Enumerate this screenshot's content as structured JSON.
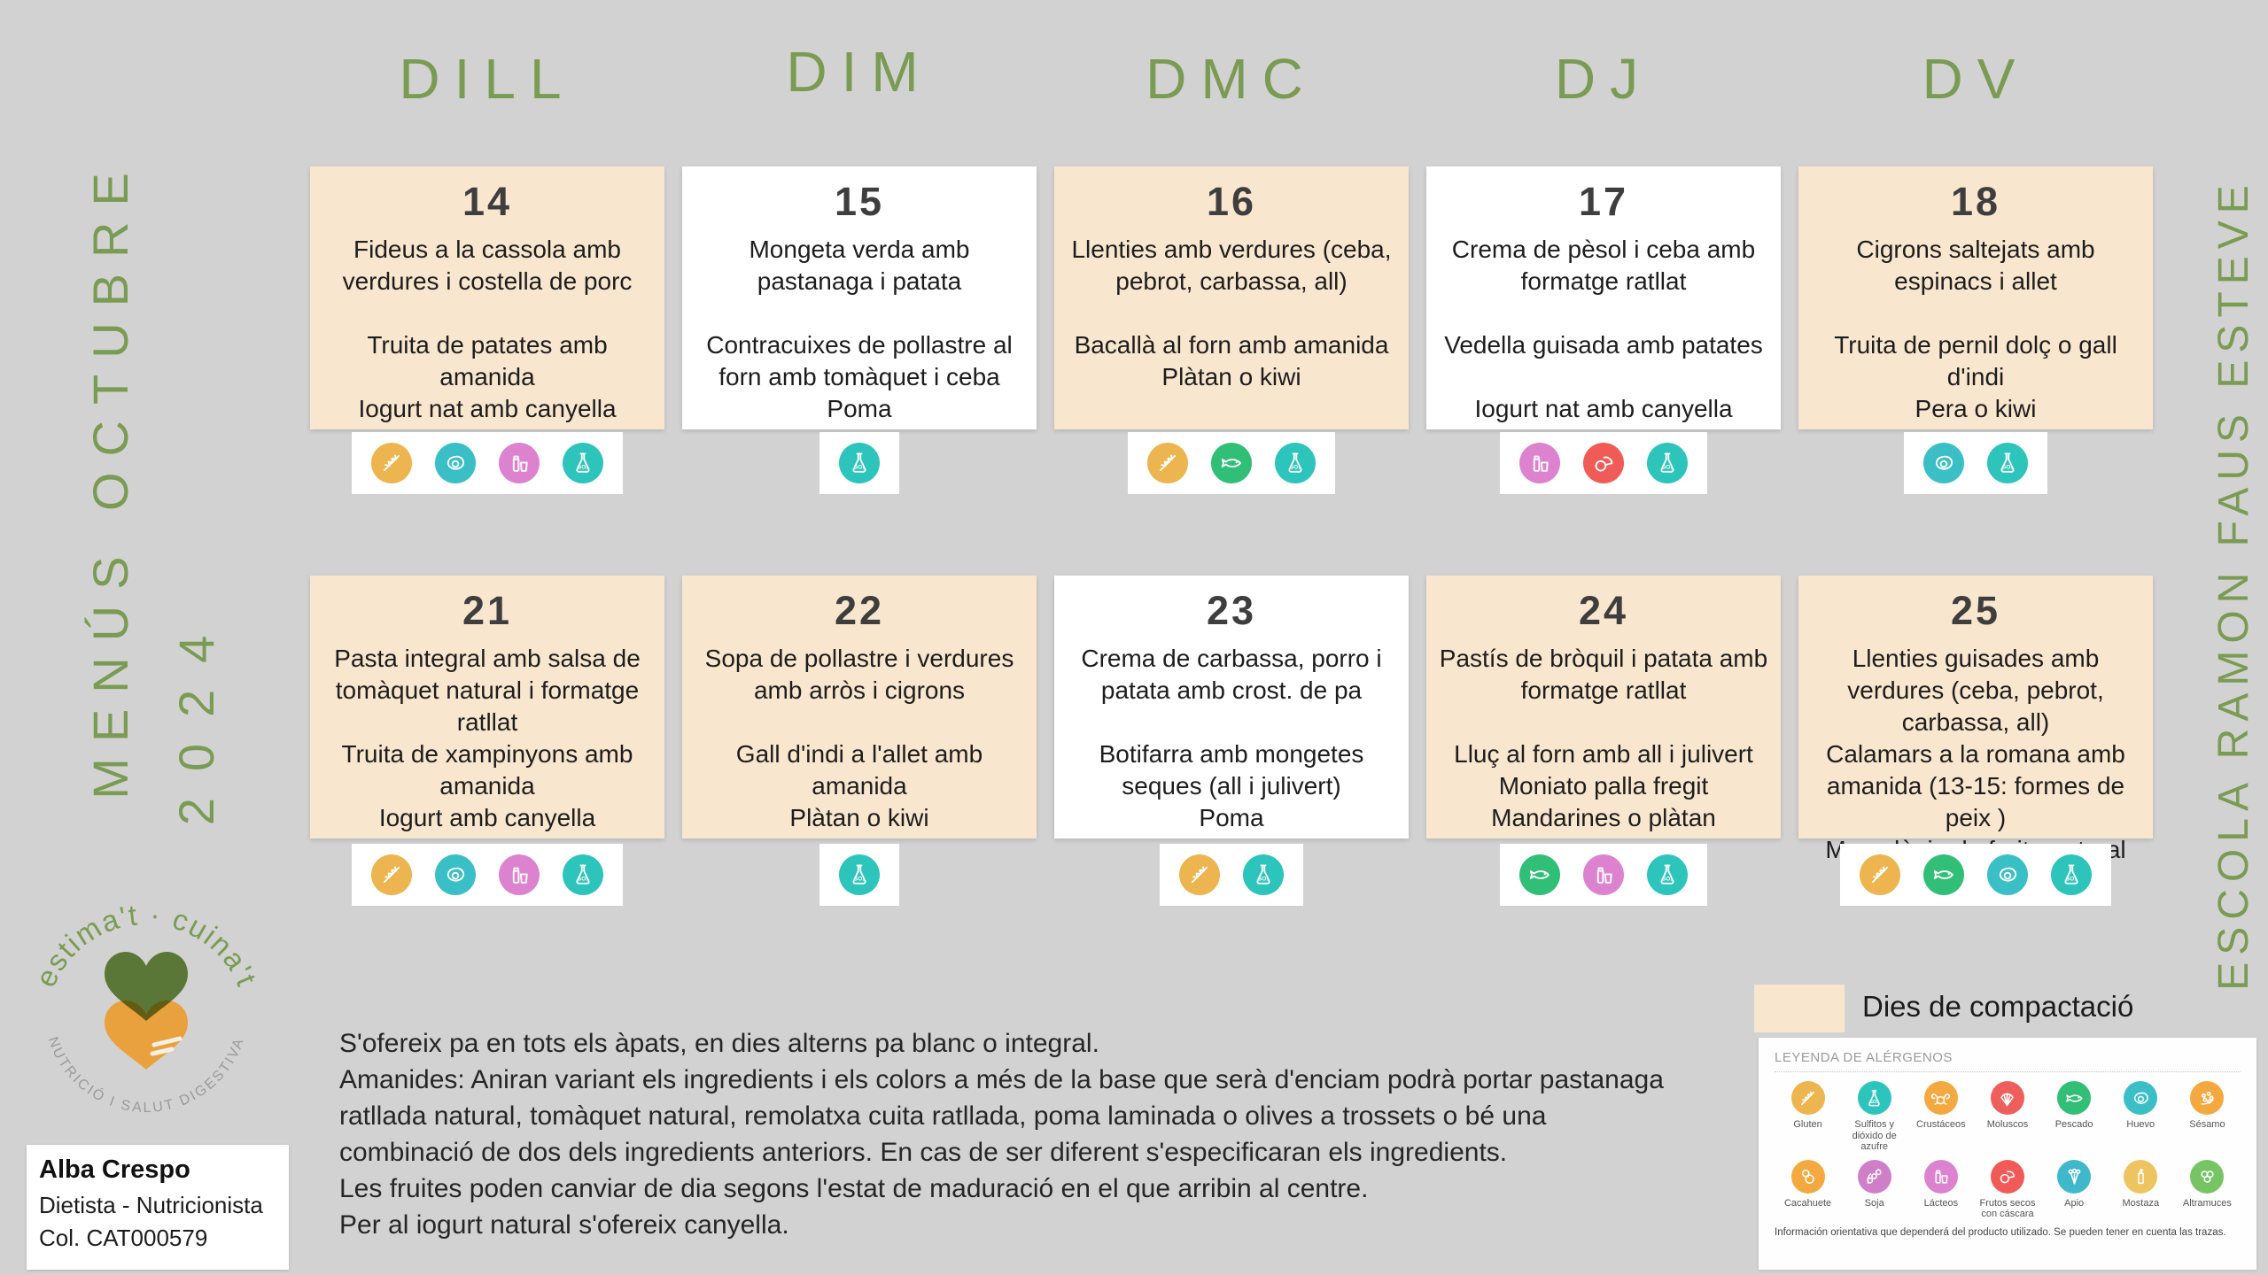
{
  "page": {
    "background": "#d2d2d2",
    "accent_green": "#7a9b53",
    "card_peach": "#f9e6ce",
    "card_white": "#ffffff"
  },
  "titles": {
    "left_line1": "MENÚS OCTUBRE",
    "left_line2": "2024",
    "right": "ESCOLA RAMON FAUS ESTEVE"
  },
  "weekdays": [
    "DILL",
    "DIM",
    "DMC",
    "DJ",
    "DV"
  ],
  "cards": [
    {
      "day": "14",
      "compaction": true,
      "lines": [
        "Fideus a la cassola amb verdures i costella de porc",
        "",
        "Truita de patates amb amanida",
        "Iogurt nat amb canyella",
        ""
      ],
      "allergens": [
        "gluten",
        "huevo",
        "lacteos",
        "sulfitos"
      ]
    },
    {
      "day": "15",
      "compaction": false,
      "lines": [
        "Mongeta verda amb pastanaga i patata",
        "",
        "Contracuixes de pollastre al forn amb tomàquet i ceba",
        "Poma",
        ""
      ],
      "allergens": [
        "sulfitos"
      ]
    },
    {
      "day": "16",
      "compaction": true,
      "lines": [
        "Llenties amb verdures (ceba, pebrot, carbassa, all)",
        "",
        "Bacallà al forn amb amanida",
        "Plàtan o kiwi",
        ""
      ],
      "allergens": [
        "gluten",
        "pescado",
        "sulfitos"
      ]
    },
    {
      "day": "17",
      "compaction": false,
      "lines": [
        "Crema de pèsol i ceba amb formatge ratllat",
        "",
        "Vedella guisada amb patates",
        "",
        "Iogurt nat amb canyella"
      ],
      "allergens": [
        "lacteos",
        "frutos_secos",
        "sulfitos"
      ]
    },
    {
      "day": "18",
      "compaction": true,
      "lines": [
        "Cigrons saltejats amb espinacs i allet",
        "",
        "Truita de pernil dolç o gall d'indi",
        "Pera o kiwi",
        ""
      ],
      "allergens": [
        "huevo",
        "sulfitos"
      ]
    },
    {
      "day": "21",
      "compaction": true,
      "lines": [
        "Pasta integral amb salsa de tomàquet natural i formatge ratllat",
        "Truita de xampinyons  amb amanida",
        "Iogurt amb canyella",
        "",
        ""
      ],
      "allergens": [
        "gluten",
        "huevo",
        "lacteos",
        "sulfitos"
      ]
    },
    {
      "day": "22",
      "compaction": true,
      "lines": [
        "Sopa de pollastre i verdures amb arròs i cigrons",
        "",
        "Gall d'indi a l'allet amb amanida",
        "Plàtan o kiwi",
        ""
      ],
      "allergens": [
        "sulfitos"
      ]
    },
    {
      "day": "23",
      "compaction": false,
      "lines": [
        "Crema de carbassa, porro i patata amb crost. de pa",
        "",
        "Botifarra amb mongetes seques (all i julivert)",
        "Poma",
        ""
      ],
      "allergens": [
        "gluten",
        "sulfitos"
      ]
    },
    {
      "day": "24",
      "compaction": true,
      "lines": [
        "Pastís de bròquil i patata amb formatge ratllat",
        "",
        "Lluç al forn amb all i julivert",
        "Moniato palla fregit",
        "Mandarines o plàtan"
      ],
      "allergens": [
        "pescado",
        "lacteos",
        "sulfitos"
      ]
    },
    {
      "day": "25",
      "compaction": true,
      "lines": [
        "Llenties guisades amb verdures (ceba, pebrot, carbassa, all)",
        "Calamars a la romana amb amanida (13-15: formes de peix  )",
        "Macedònia de fruita natural",
        "",
        ""
      ],
      "allergens": [
        "gluten",
        "pescado",
        "huevo",
        "sulfitos"
      ]
    }
  ],
  "allergens": {
    "colors": {
      "gluten": "#EDB54F",
      "sulfitos": "#2DC4BC",
      "crustaceos": "#F3A93F",
      "moluscos": "#EE5F5C",
      "pescado": "#31BE77",
      "huevo": "#3BBFC6",
      "sesamo": "#F3A93F",
      "cacahuete": "#F3A93F",
      "soja": "#CE7FC8",
      "lacteos": "#DC82CE",
      "frutos_secos": "#F15B57",
      "apio": "#3FB9C9",
      "mostaza": "#EDC45F",
      "altramuces": "#77C464"
    }
  },
  "legend": {
    "title": "LEYENDA DE ALÉRGENOS",
    "items": [
      {
        "key": "gluten",
        "label": "Gluten"
      },
      {
        "key": "sulfitos",
        "label": "Sulfitos y dióxido de azufre"
      },
      {
        "key": "crustaceos",
        "label": "Crustáceos"
      },
      {
        "key": "moluscos",
        "label": "Moluscos"
      },
      {
        "key": "pescado",
        "label": "Pescado"
      },
      {
        "key": "huevo",
        "label": "Huevo"
      },
      {
        "key": "sesamo",
        "label": "Sésamo"
      },
      {
        "key": "cacahuete",
        "label": "Cacahuete"
      },
      {
        "key": "soja",
        "label": "Soja"
      },
      {
        "key": "lacteos",
        "label": "Lácteos"
      },
      {
        "key": "frutos_secos",
        "label": "Frutos secos con cáscara"
      },
      {
        "key": "apio",
        "label": "Apio"
      },
      {
        "key": "mostaza",
        "label": "Mostaza"
      },
      {
        "key": "altramuces",
        "label": "Altramuces"
      }
    ],
    "note": "Información orientativa que dependerá del producto utilizado. Se pueden tener en cuenta las trazas."
  },
  "compaction": {
    "label": "Dies de compactació"
  },
  "notes": {
    "lines": [
      "S'ofereix pa en tots els àpats, en dies alterns pa blanc o integral.",
      "Amanides: Aniran variant els ingredients i els colors a més de la base que serà d'enciam podrà portar pastanaga",
      "ratllada natural, tomàquet natural, remolatxa cuita ratllada, poma laminada o olives a trossets o bé una",
      "combinació de dos dels ingredients anteriors. En cas de ser diferent s'especificaran els ingredients.",
      "Les fruites poden canviar de dia segons l'estat de maduració en el que arribin al centre.",
      "Per al iogurt natural s'ofereix canyella."
    ]
  },
  "brand": {
    "arc_top": "estima't · cuina't",
    "arc_bottom": "NUTRICIÓ I SALUT DIGESTIVA",
    "name": "Alba Crespo",
    "role": "Dietista - Nutricionista",
    "license": "Col. CAT000579"
  }
}
